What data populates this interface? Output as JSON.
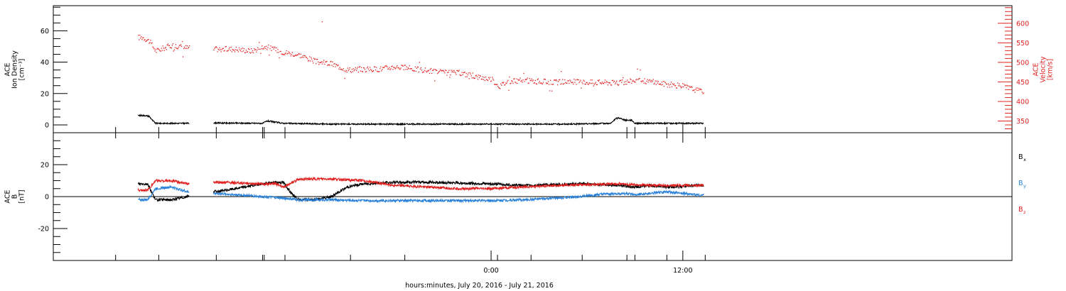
{
  "chart_data": [
    {
      "type": "scatter",
      "panel": "density-velocity",
      "ylabel_lines": [
        "ACE",
        "Ion Density",
        "[cm⁻³]"
      ],
      "y2label_lines": [
        "ACE",
        "Velocity",
        "[km/s]"
      ],
      "ylim": [
        -5,
        76
      ],
      "y2lim": [
        320,
        645
      ],
      "yticks": [
        0,
        20,
        40,
        60
      ],
      "y2ticks": [
        350,
        400,
        450,
        500,
        550,
        600
      ],
      "x_hours": [
        -23.5,
        -20.8,
        -17.2,
        -14.3,
        -14.2,
        -12.9,
        -8.8,
        -5.4,
        0.4,
        2.5,
        5.7,
        8.5,
        9.0,
        11.0,
        13.4
      ],
      "series": [
        {
          "name": "Velocity",
          "axis": "right",
          "color": "#e0201f",
          "x": [
            -22.0,
            -21.8,
            -21.4,
            -21.0,
            -20.0,
            -19.0,
            -18.0,
            -17.2,
            -16.0,
            -15.0,
            -14.2,
            -13.0,
            -12.0,
            -11.0,
            -10.0,
            -9.0,
            -8.0,
            -7.0,
            -6.0,
            -5.0,
            -4.0,
            -3.0,
            -2.0,
            -1.0,
            0.0,
            0.5,
            1.0,
            2.0,
            3.0,
            4.0,
            5.0,
            6.0,
            7.0,
            8.0,
            9.0,
            10.0,
            11.0,
            12.0,
            13.0
          ],
          "values": [
            565,
            565,
            555,
            530,
            545,
            538,
            535,
            535,
            535,
            530,
            542,
            527,
            520,
            503,
            497,
            482,
            483,
            484,
            490,
            485,
            480,
            475,
            474,
            465,
            458,
            440,
            452,
            455,
            452,
            450,
            452,
            450,
            450,
            448,
            455,
            452,
            445,
            440,
            428
          ]
        },
        {
          "name": "Ion Density",
          "axis": "left",
          "color": "#000000",
          "x": [
            -22.0,
            -21.7,
            -21.4,
            -21.2,
            -21.0,
            -19.0,
            -17.2,
            -14.3,
            -14.0,
            -13.0,
            -10.0,
            -5.0,
            0.0,
            5.0,
            7.5,
            7.8,
            8.0,
            8.4,
            8.8,
            9.0,
            12.0,
            13.0
          ],
          "values": [
            6,
            6,
            5.5,
            3,
            1,
            1,
            1.2,
            1,
            2.5,
            1,
            0.5,
            0.5,
            0.5,
            0.5,
            1,
            4,
            4.5,
            3,
            3,
            1,
            1,
            1
          ]
        }
      ]
    },
    {
      "type": "line",
      "panel": "magnetic-field",
      "ylabel_lines": [
        "ACE",
        "B",
        "[nT]"
      ],
      "ylim": [
        -40,
        40
      ],
      "yticks": [
        -20,
        0,
        20
      ],
      "x_hours": [
        -23.5,
        -20.8,
        -17.2,
        -14.3,
        -14.2,
        -12.9,
        -8.8,
        -5.4,
        0.4,
        2.5,
        5.7,
        8.5,
        9.0,
        11.0,
        13.4
      ],
      "x_tick_labels": [
        "0:00",
        "12:00"
      ],
      "xlabel": "hours:minutes, July 20, 2016 - July 21, 2016",
      "series": [
        {
          "name": "B",
          "subscript": "x",
          "color": "#000000",
          "x": [
            -22.0,
            -21.5,
            -21.0,
            -20.0,
            -19.0,
            -18.0,
            -17.2,
            -14.3,
            -13.5,
            -13.0,
            -12.5,
            -12.0,
            -11.0,
            -10.0,
            -9.0,
            -8.0,
            -6.0,
            -4.0,
            -2.0,
            0.0,
            2.0,
            4.0,
            6.0,
            8.0,
            9.0,
            10.0,
            11.0,
            12.0,
            13.0
          ],
          "values": [
            8,
            8,
            -2,
            -2,
            0,
            5,
            3,
            8,
            9,
            9,
            2,
            -2,
            -2,
            0,
            6,
            8,
            9,
            9,
            8.5,
            8,
            7,
            7.5,
            8,
            7,
            6,
            7,
            6,
            6.5,
            7
          ]
        },
        {
          "name": "B",
          "subscript": "y",
          "color": "#2a82d8",
          "x": [
            -22.0,
            -21.5,
            -21.0,
            -20.0,
            -19.0,
            -18.0,
            -17.2,
            -14.3,
            -13.0,
            -12.0,
            -10.0,
            -8.0,
            -6.0,
            -4.0,
            -2.0,
            0.0,
            2.0,
            4.0,
            5.5,
            7.0,
            8.5,
            9.0,
            10.0,
            11.0,
            12.0,
            13.0
          ],
          "values": [
            -2,
            -2,
            5,
            6,
            3,
            2,
            2,
            0,
            -1,
            -2,
            -2,
            -2.5,
            -2.5,
            -2.5,
            -2.5,
            -2.5,
            -2,
            -1,
            0,
            1.5,
            2,
            1,
            2,
            3,
            2,
            1
          ]
        },
        {
          "name": "B",
          "subscript": "z",
          "color": "#e0201f",
          "x": [
            -22.0,
            -21.5,
            -21.0,
            -20.0,
            -19.0,
            -18.0,
            -17.2,
            -14.3,
            -13.5,
            -13.0,
            -12.0,
            -10.0,
            -8.0,
            -6.0,
            -4.0,
            -2.0,
            0.0,
            2.0,
            4.0,
            6.0,
            8.0,
            10.0,
            12.0,
            13.0
          ],
          "values": [
            4,
            4,
            10,
            10,
            8,
            9,
            9,
            8,
            8,
            6,
            11,
            11,
            10,
            7,
            6,
            5,
            5,
            6,
            7,
            7.5,
            8,
            7,
            7,
            7
          ]
        }
      ]
    }
  ]
}
